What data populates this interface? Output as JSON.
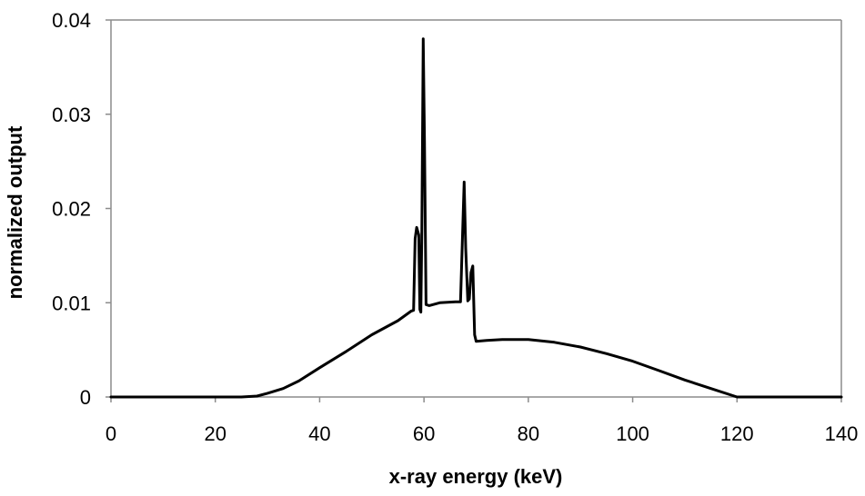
{
  "chart_data": {
    "type": "line",
    "title": "",
    "xlabel": "x-ray energy (keV)",
    "ylabel": "normalized output",
    "xlim": [
      0,
      140
    ],
    "ylim": [
      0,
      0.04
    ],
    "x_ticks": [
      "0",
      "20",
      "40",
      "60",
      "80",
      "100",
      "120",
      "140"
    ],
    "y_ticks": [
      "0",
      "0.01",
      "0.02",
      "0.03",
      "0.04"
    ],
    "grid": false,
    "legend": "none",
    "line_color": "#000000",
    "series": [
      {
        "x": [
          0,
          25,
          28,
          30,
          33,
          36,
          40,
          45,
          50,
          55,
          57.5,
          58.0,
          58.3,
          58.6,
          59.0,
          59.2,
          59.4,
          59.6,
          59.85,
          60.1,
          60.4,
          61,
          63,
          66,
          67.0,
          67.3,
          67.7,
          68.0,
          68.4,
          68.7,
          69.0,
          69.35,
          69.7,
          70.0,
          72,
          75,
          80,
          85,
          90,
          95,
          100,
          105,
          110,
          115,
          120,
          125,
          140
        ],
        "y": [
          0,
          0,
          0.0001,
          0.0004,
          0.0009,
          0.0017,
          0.0031,
          0.0048,
          0.0066,
          0.0081,
          0.0091,
          0.0092,
          0.0168,
          0.018,
          0.0172,
          0.0093,
          0.009,
          0.0178,
          0.038,
          0.027,
          0.0098,
          0.0097,
          0.01,
          0.0101,
          0.0101,
          0.0155,
          0.0228,
          0.0158,
          0.0102,
          0.0104,
          0.0132,
          0.0139,
          0.0066,
          0.0059,
          0.006,
          0.0061,
          0.0061,
          0.0058,
          0.0053,
          0.0046,
          0.0038,
          0.0028,
          0.0018,
          0.0009,
          0,
          0,
          0
        ]
      }
    ]
  }
}
